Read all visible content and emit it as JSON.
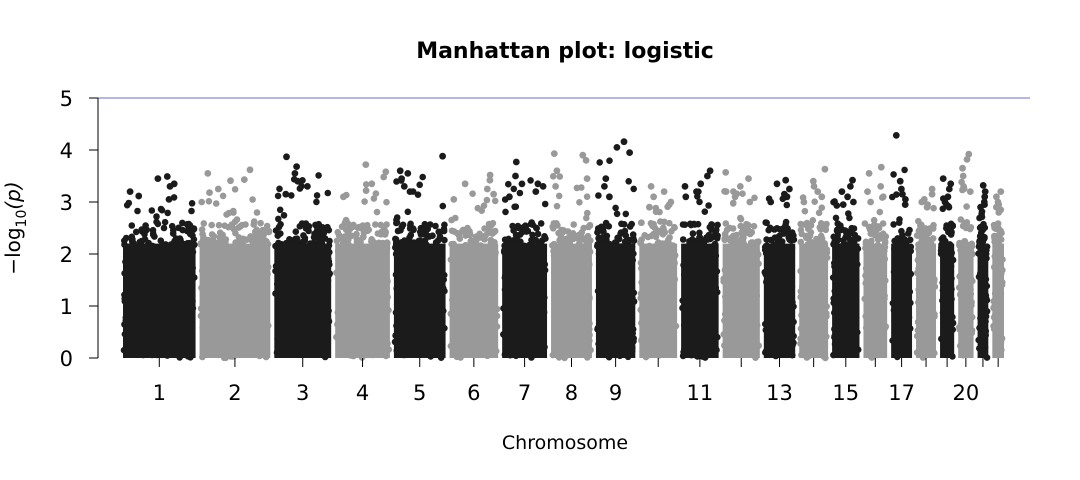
{
  "chart_data": {
    "type": "scatter",
    "title": "Manhattan plot: logistic",
    "xlabel": "Chromosome",
    "ylabel": "−log10(p)",
    "ylabel_parts": {
      "prefix": "−log",
      "sub": "10",
      "suffix": "(p)"
    },
    "ylim": [
      0,
      5
    ],
    "yticks": [
      0,
      1,
      2,
      3,
      4,
      5
    ],
    "threshold": {
      "value": 5,
      "color": "#6b6fd0"
    },
    "colors": {
      "odd": "#1b1b1b",
      "even": "#999999"
    },
    "chromosome_labels": [
      "1",
      "2",
      "3",
      "4",
      "5",
      "6",
      "7",
      "8",
      "9",
      "11",
      "13",
      "15",
      "17",
      "20"
    ],
    "chromosomes": [
      {
        "chr": 1,
        "label": "1",
        "length": 249,
        "max": 3.49,
        "top_points": [
          3.49,
          3.45,
          3.35,
          3.3,
          3.2,
          3.05
        ]
      },
      {
        "chr": 2,
        "label": "2",
        "length": 243,
        "max": 3.62,
        "top_points": [
          3.62,
          3.55,
          3.43,
          3.41,
          3.25,
          3.18
        ]
      },
      {
        "chr": 3,
        "label": "3",
        "length": 198,
        "max": 3.87,
        "top_points": [
          3.87,
          3.68,
          3.55,
          3.4,
          3.3,
          3.15
        ]
      },
      {
        "chr": 4,
        "label": "4",
        "length": 191,
        "max": 3.72,
        "top_points": [
          3.72,
          3.58,
          3.48,
          3.35,
          3.22,
          3.1
        ]
      },
      {
        "chr": 5,
        "label": "5",
        "length": 181,
        "max": 3.88,
        "top_points": [
          3.88,
          3.6,
          3.55,
          3.45,
          3.3,
          3.2
        ]
      },
      {
        "chr": 6,
        "label": "6",
        "length": 171,
        "max": 3.52,
        "top_points": [
          3.52,
          3.42,
          3.35,
          3.25,
          3.15,
          3.05
        ]
      },
      {
        "chr": 7,
        "label": "7",
        "length": 159,
        "max": 3.77,
        "top_points": [
          3.77,
          3.5,
          3.35,
          3.3,
          3.2,
          3.1
        ]
      },
      {
        "chr": 8,
        "label": "8",
        "length": 146,
        "max": 3.93,
        "top_points": [
          3.93,
          3.9,
          3.8,
          3.6,
          3.45,
          3.3
        ]
      },
      {
        "chr": 9,
        "label": "9",
        "length": 141,
        "max": 4.16,
        "top_points": [
          4.16,
          4.05,
          3.95,
          3.45,
          3.3,
          3.1
        ]
      },
      {
        "chr": 10,
        "label": "",
        "length": 136,
        "max": 3.3,
        "top_points": [
          3.3,
          3.2,
          3.1,
          3.0,
          2.95,
          2.9
        ]
      },
      {
        "chr": 11,
        "label": "11",
        "length": 135,
        "max": 3.6,
        "top_points": [
          3.6,
          3.5,
          3.35,
          3.3,
          3.2,
          3.1
        ]
      },
      {
        "chr": 12,
        "label": "",
        "length": 134,
        "max": 3.57,
        "top_points": [
          3.57,
          3.45,
          3.3,
          3.2,
          3.1,
          3.0
        ]
      },
      {
        "chr": 13,
        "label": "13",
        "length": 115,
        "max": 3.42,
        "top_points": [
          3.42,
          3.35,
          3.25,
          3.15,
          3.1,
          3.0
        ]
      },
      {
        "chr": 14,
        "label": "",
        "length": 107,
        "max": 3.63,
        "top_points": [
          3.63,
          3.4,
          3.3,
          3.2,
          3.1,
          3.0
        ]
      },
      {
        "chr": 15,
        "label": "15",
        "length": 102,
        "max": 3.42,
        "top_points": [
          3.42,
          3.3,
          3.2,
          3.1,
          3.0,
          2.95
        ]
      },
      {
        "chr": 16,
        "label": "",
        "length": 90,
        "max": 3.67,
        "top_points": [
          3.67,
          3.55,
          3.3,
          3.2,
          3.1,
          3.0
        ]
      },
      {
        "chr": 17,
        "label": "17",
        "length": 81,
        "max": 4.28,
        "top_points": [
          4.28,
          3.4,
          3.25,
          3.15,
          3.05,
          2.95
        ]
      },
      {
        "chr": 18,
        "label": "",
        "length": 78,
        "max": 3.25,
        "top_points": [
          3.25,
          3.15,
          3.05,
          3.0,
          2.95,
          2.9
        ]
      },
      {
        "chr": 19,
        "label": "",
        "length": 59,
        "max": 3.45,
        "top_points": [
          3.45,
          3.35,
          3.25,
          3.1,
          3.0,
          2.95
        ]
      },
      {
        "chr": 20,
        "label": "20",
        "length": 63,
        "max": 3.92,
        "top_points": [
          3.92,
          3.82,
          3.65,
          3.5,
          3.3,
          3.2
        ]
      },
      {
        "chr": 21,
        "label": "",
        "length": 48,
        "max": 3.32,
        "top_points": [
          3.32,
          3.2,
          3.1,
          3.0,
          2.95,
          2.9
        ]
      },
      {
        "chr": 22,
        "label": "",
        "length": 51,
        "max": 3.2,
        "top_points": [
          3.2,
          3.1,
          3.0,
          2.95,
          2.9,
          2.85
        ]
      }
    ]
  }
}
